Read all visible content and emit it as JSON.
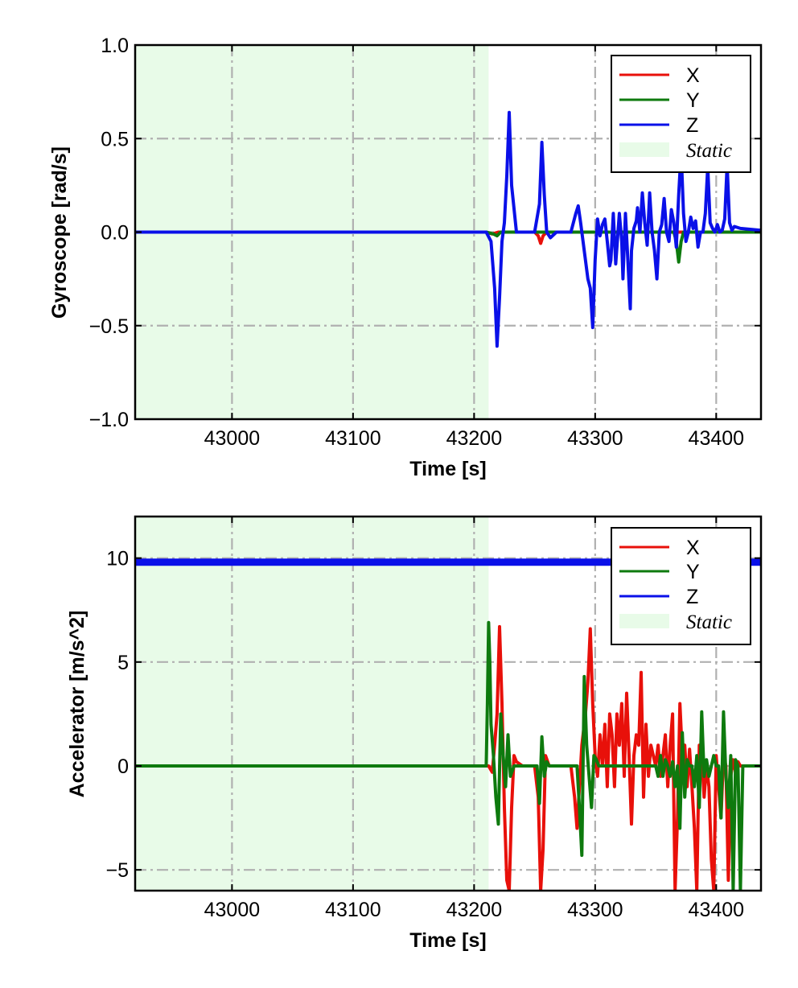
{
  "colors": {
    "X": "#e8100a",
    "Y": "#0e7a0e",
    "Z": "#0a10e8",
    "static_fill": "#e8fbe8",
    "grid": "#b0b0b0"
  },
  "chart_data": [
    {
      "type": "line",
      "title": "",
      "xlabel": "Time [s]",
      "ylabel": "Gyroscope [rad/s]",
      "xlim": [
        42920,
        43437
      ],
      "ylim": [
        -1.0,
        1.0
      ],
      "xticks": [
        43000,
        43100,
        43200,
        43300,
        43400
      ],
      "xtick_labels": [
        "43000",
        "43100",
        "43200",
        "43300",
        "43400"
      ],
      "yticks": [
        -1.0,
        -0.5,
        0.0,
        0.5,
        1.0
      ],
      "ytick_labels": [
        "−1.0",
        "−0.5",
        "0.0",
        "0.5",
        "1.0"
      ],
      "grid": true,
      "legend_position": "top-right",
      "legend": [
        "X",
        "Y",
        "Z",
        "Static"
      ],
      "static_region": [
        42920,
        43212
      ],
      "series": [
        {
          "name": "X",
          "color_key": "X",
          "x": [
            42920,
            43210,
            43215,
            43220,
            43225,
            43250,
            43253,
            43255,
            43257,
            43260,
            43437
          ],
          "y": [
            0,
            0,
            -0.01,
            0.0,
            0.0,
            0.0,
            -0.02,
            -0.06,
            -0.02,
            0.0,
            0.0
          ]
        },
        {
          "name": "Y",
          "color_key": "Y",
          "x": [
            42920,
            43210,
            43216,
            43219,
            43222,
            43230,
            43365,
            43367,
            43369,
            43371,
            43373,
            43437
          ],
          "y": [
            0,
            0,
            -0.01,
            -0.02,
            0.0,
            0.0,
            0.0,
            -0.05,
            -0.16,
            -0.05,
            0.0,
            0.0
          ]
        },
        {
          "name": "Z",
          "color_key": "Z",
          "x": [
            42920,
            43210,
            43214,
            43217,
            43219,
            43221,
            43223,
            43225,
            43227,
            43229,
            43231,
            43235,
            43250,
            43254,
            43256,
            43258,
            43260,
            43263,
            43268,
            43280,
            43284,
            43286,
            43288,
            43290,
            43292,
            43294,
            43296,
            43298,
            43300,
            43302,
            43304,
            43306,
            43308,
            43310,
            43312,
            43313,
            43315,
            43317,
            43318,
            43320,
            43322,
            43323,
            43325,
            43327,
            43329,
            43330,
            43332,
            43334,
            43335,
            43337,
            43339,
            43341,
            43343,
            43345,
            43347,
            43349,
            43351,
            43353,
            43355,
            43357,
            43359,
            43361,
            43363,
            43365,
            43367,
            43369,
            43371,
            43373,
            43375,
            43377,
            43379,
            43381,
            43383,
            43385,
            43387,
            43389,
            43391,
            43393,
            43395,
            43397,
            43399,
            43401,
            43403,
            43405,
            43407,
            43409,
            43411,
            43413,
            43415,
            43420,
            43437
          ],
          "y": [
            0,
            0,
            -0.05,
            -0.3,
            -0.61,
            -0.35,
            -0.05,
            0.05,
            0.3,
            0.64,
            0.25,
            0.0,
            0.0,
            0.15,
            0.48,
            0.2,
            0.0,
            -0.03,
            0.0,
            0.0,
            0.1,
            0.14,
            0.05,
            -0.05,
            -0.15,
            -0.25,
            -0.3,
            -0.51,
            -0.15,
            0.07,
            -0.02,
            0.04,
            0.07,
            -0.05,
            -0.18,
            -0.15,
            0.1,
            -0.17,
            -0.08,
            0.1,
            -0.05,
            -0.25,
            0.1,
            -0.15,
            -0.41,
            -0.1,
            0.02,
            0.06,
            0.13,
            0.0,
            0.21,
            0.05,
            -0.07,
            0.21,
            0.0,
            -0.1,
            -0.25,
            0.0,
            0.04,
            0.18,
            0.0,
            -0.05,
            0.12,
            0.05,
            -0.08,
            0.2,
            0.43,
            0.1,
            -0.05,
            0.0,
            0.08,
            0.02,
            0.06,
            -0.08,
            0.0,
            0.0,
            0.1,
            0.35,
            0.05,
            0.02,
            0.0,
            0.04,
            0.0,
            0.01,
            0.07,
            0.36,
            0.05,
            0.01,
            0.03,
            0.02,
            0.01
          ]
        }
      ]
    },
    {
      "type": "line",
      "title": "",
      "xlabel": "Time [s]",
      "ylabel": "Accelerator [m/s^2]",
      "xlim": [
        42920,
        43437
      ],
      "ylim": [
        -6.0,
        12.0
      ],
      "xticks": [
        43000,
        43100,
        43200,
        43300,
        43400
      ],
      "xtick_labels": [
        "43000",
        "43100",
        "43200",
        "43300",
        "43400"
      ],
      "yticks": [
        -5,
        0,
        5,
        10
      ],
      "ytick_labels": [
        "−5",
        "0",
        "5",
        "10"
      ],
      "grid": true,
      "legend_position": "top-right",
      "legend": [
        "X",
        "Y",
        "Z",
        "Static"
      ],
      "static_region": [
        42920,
        43212
      ],
      "series": [
        {
          "name": "X",
          "color_key": "X",
          "x": [
            42920,
            43212,
            43215,
            43217,
            43219,
            43221,
            43223,
            43225,
            43227,
            43229,
            43231,
            43233,
            43235,
            43240,
            43250,
            43253,
            43255,
            43257,
            43259,
            43262,
            43270,
            43280,
            43283,
            43285,
            43287,
            43289,
            43292,
            43294,
            43296,
            43298,
            43300,
            43302,
            43304,
            43306,
            43308,
            43310,
            43312,
            43314,
            43316,
            43318,
            43320,
            43322,
            43324,
            43326,
            43328,
            43330,
            43332,
            43334,
            43336,
            43338,
            43340,
            43342,
            43344,
            43346,
            43348,
            43350,
            43352,
            43354,
            43356,
            43358,
            43360,
            43362,
            43364,
            43366,
            43368,
            43370,
            43372,
            43374,
            43376,
            43378,
            43380,
            43382,
            43384,
            43386,
            43388,
            43390,
            43392,
            43394,
            43396,
            43398,
            43400,
            43402,
            43404,
            43406,
            43408,
            43410,
            43412,
            43414,
            43416,
            43418,
            43420,
            43425,
            43437
          ],
          "y": [
            0,
            0,
            -0.3,
            1.0,
            2.5,
            6.7,
            3.0,
            -2.0,
            -5.5,
            -6.0,
            -2.0,
            0.5,
            0.2,
            0.0,
            0.0,
            -1.5,
            -6.0,
            -4.0,
            0.5,
            0.0,
            0.0,
            0.0,
            -1.5,
            -3.0,
            -1.0,
            1.0,
            2.5,
            4.0,
            6.6,
            3.0,
            0.5,
            -0.5,
            1.5,
            0.0,
            2.0,
            -1.0,
            2.5,
            1.5,
            -1.0,
            2.5,
            1.0,
            3.0,
            -0.5,
            3.5,
            0.5,
            -2.8,
            0.5,
            1.5,
            1.0,
            4.5,
            -1.5,
            2.0,
            -0.5,
            1.0,
            0.5,
            0.0,
            1.0,
            -0.5,
            0.5,
            1.5,
            -1.0,
            1.0,
            2.5,
            -6.0,
            -2.5,
            3.0,
            0.5,
            1.0,
            -1.0,
            0.8,
            -1.0,
            -3.0,
            -6.0,
            1.0,
            0.5,
            -1.5,
            0.0,
            -1.0,
            -4.5,
            -6.0,
            0.5,
            -1.0,
            -2.5,
            0.5,
            0.0,
            -5.5,
            -0.5,
            0.3,
            -0.3,
            0.2,
            0.0,
            0.0,
            0.0
          ]
        },
        {
          "name": "Y",
          "color_key": "Y",
          "x": [
            42920,
            43210,
            43211,
            43212,
            43213,
            43214,
            43216,
            43218,
            43220,
            43222,
            43224,
            43226,
            43228,
            43230,
            43233,
            43240,
            43252,
            43254,
            43256,
            43258,
            43260,
            43262,
            43270,
            43285,
            43287,
            43289,
            43291,
            43293,
            43295,
            43297,
            43299,
            43301,
            43303,
            43306,
            43320,
            43330,
            43340,
            43350,
            43352,
            43354,
            43356,
            43358,
            43360,
            43362,
            43364,
            43366,
            43368,
            43370,
            43372,
            43374,
            43376,
            43378,
            43380,
            43382,
            43384,
            43386,
            43388,
            43390,
            43392,
            43394,
            43396,
            43398,
            43400,
            43402,
            43404,
            43406,
            43408,
            43410,
            43412,
            43414,
            43416,
            43418,
            43420,
            43422,
            43424,
            43426,
            43428,
            43437
          ],
          "y": [
            0,
            0,
            3.0,
            6.9,
            5.0,
            2.0,
            0.5,
            -1.5,
            -2.8,
            2.5,
            0.5,
            -1.0,
            1.5,
            -0.5,
            0.0,
            0.0,
            0.0,
            -1.8,
            1.4,
            -0.5,
            0.2,
            0.0,
            0.0,
            0.0,
            -2.0,
            -4.3,
            4.3,
            1.0,
            -0.5,
            -2.0,
            0.5,
            0.3,
            0.0,
            0.0,
            0.0,
            0.0,
            0.0,
            0.0,
            -0.5,
            0.5,
            -0.5,
            0.3,
            0.0,
            -0.5,
            0.2,
            -1.0,
            0.0,
            -3.0,
            1.6,
            -1.5,
            0.3,
            0.0,
            0.0,
            -1.0,
            0.5,
            -2.0,
            2.6,
            -0.5,
            0.3,
            -0.5,
            0.0,
            0.5,
            0.0,
            0.0,
            -2.5,
            2.6,
            -0.5,
            -2.0,
            0.5,
            -6.0,
            0.3,
            0.0,
            -6.0,
            0.0,
            0.0,
            0.0,
            0.0,
            0.0
          ]
        },
        {
          "name": "Z",
          "color_key": "Z",
          "x": [
            42920,
            43437
          ],
          "y": [
            9.8,
            9.8
          ]
        }
      ]
    }
  ]
}
